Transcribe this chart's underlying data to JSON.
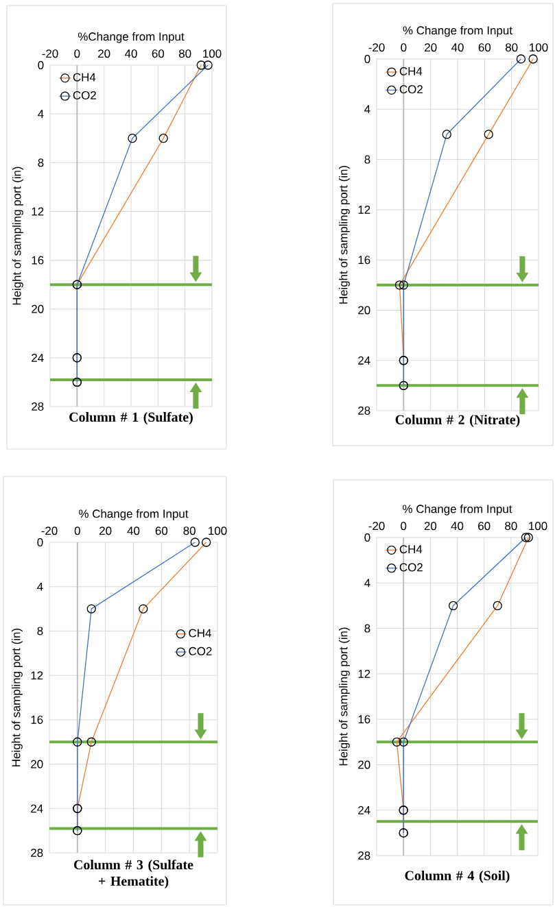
{
  "chart_data": [
    {
      "type": "line",
      "title": "Column # 1  (Sulfate)",
      "xlabel": "%Change from Input",
      "ylabel": "Height of sampling port (in)",
      "xlim": [
        -20,
        100
      ],
      "xticks": [
        -20,
        0,
        20,
        40,
        60,
        80,
        100
      ],
      "ylim": [
        28,
        0
      ],
      "yticks": [
        0,
        4,
        8,
        12,
        16,
        20,
        24,
        28
      ],
      "grid": true,
      "legend": "top left",
      "marker": "circle",
      "series": [
        {
          "name": "CH4",
          "color": "#ed7d31",
          "x": [
            92,
            64,
            0,
            0,
            0
          ],
          "values": [
            0,
            6,
            18,
            24,
            26
          ]
        },
        {
          "name": "CO2",
          "color": "#4472c4",
          "x": [
            97,
            41,
            0,
            0,
            0
          ],
          "values": [
            0,
            6,
            18,
            24,
            26
          ]
        }
      ],
      "ref_lines": [
        {
          "axis": "y",
          "value": 18,
          "color": "#70ad47"
        },
        {
          "axis": "y",
          "value": 25.8,
          "color": "#70ad47"
        }
      ]
    },
    {
      "type": "line",
      "title": "Column # 2  (Nitrate)",
      "xlabel": "% Change from Input",
      "ylabel": "Height of sampling port (in)",
      "xlim": [
        -20,
        100
      ],
      "xticks": [
        -20,
        0,
        20,
        40,
        60,
        80,
        100
      ],
      "ylim": [
        28,
        0
      ],
      "yticks": [
        0,
        4,
        8,
        12,
        16,
        20,
        24,
        28
      ],
      "grid": true,
      "legend": "top left",
      "marker": "circle",
      "series": [
        {
          "name": "CH4",
          "color": "#ed7d31",
          "x": [
            96,
            63,
            -3,
            0,
            0
          ],
          "values": [
            0,
            6,
            18,
            24,
            26
          ]
        },
        {
          "name": "CO2",
          "color": "#4472c4",
          "x": [
            87,
            32,
            0,
            0,
            0
          ],
          "values": [
            0,
            6,
            18,
            24,
            26
          ]
        }
      ],
      "ref_lines": [
        {
          "axis": "y",
          "value": 18,
          "color": "#70ad47"
        },
        {
          "axis": "y",
          "value": 26,
          "color": "#70ad47"
        }
      ]
    },
    {
      "type": "line",
      "title": "Column # 3 (Sulfate + Hematite)",
      "xlabel": "% Change from Input",
      "ylabel": "Height of sampling port (in)",
      "xlim": [
        -20,
        100
      ],
      "xticks": [
        -20,
        0,
        20,
        40,
        60,
        80,
        100
      ],
      "ylim": [
        28,
        0
      ],
      "yticks": [
        0,
        4,
        8,
        12,
        16,
        20,
        24,
        28
      ],
      "grid": true,
      "legend": "right",
      "marker": "circle",
      "series": [
        {
          "name": "CH4",
          "color": "#ed7d31",
          "x": [
            92,
            47,
            10,
            0,
            0
          ],
          "values": [
            0,
            6,
            18,
            24,
            26
          ]
        },
        {
          "name": "CO2",
          "color": "#4472c4",
          "x": [
            84,
            10,
            0,
            0,
            0
          ],
          "values": [
            0,
            6,
            18,
            24,
            26
          ]
        }
      ],
      "ref_lines": [
        {
          "axis": "y",
          "value": 25.8,
          "color": "#70ad47"
        },
        {
          "axis": "y",
          "value": 18,
          "color": "#70ad47"
        }
      ]
    },
    {
      "type": "line",
      "title": "Column # 4 (Soil)",
      "xlabel": "% Change from Input",
      "ylabel": "Height of sampling port (in)",
      "xlim": [
        -20,
        100
      ],
      "xticks": [
        -20,
        0,
        20,
        40,
        60,
        80,
        100
      ],
      "ylim": [
        28,
        0
      ],
      "yticks": [
        0,
        4,
        8,
        12,
        16,
        20,
        24,
        28
      ],
      "grid": true,
      "legend": "top left",
      "marker": "circle",
      "series": [
        {
          "name": "CH4",
          "color": "#ed7d31",
          "x": [
            93,
            70,
            -5,
            0,
            0
          ],
          "values": [
            0,
            6,
            18,
            24,
            26
          ]
        },
        {
          "name": "CO2",
          "color": "#4472c4",
          "x": [
            91,
            37,
            0,
            0,
            0
          ],
          "values": [
            0,
            6,
            18,
            24,
            26
          ]
        }
      ],
      "ref_lines": [
        {
          "axis": "y",
          "value": 18,
          "color": "#70ad47"
        },
        {
          "axis": "y",
          "value": 25,
          "color": "#70ad47"
        }
      ]
    }
  ]
}
